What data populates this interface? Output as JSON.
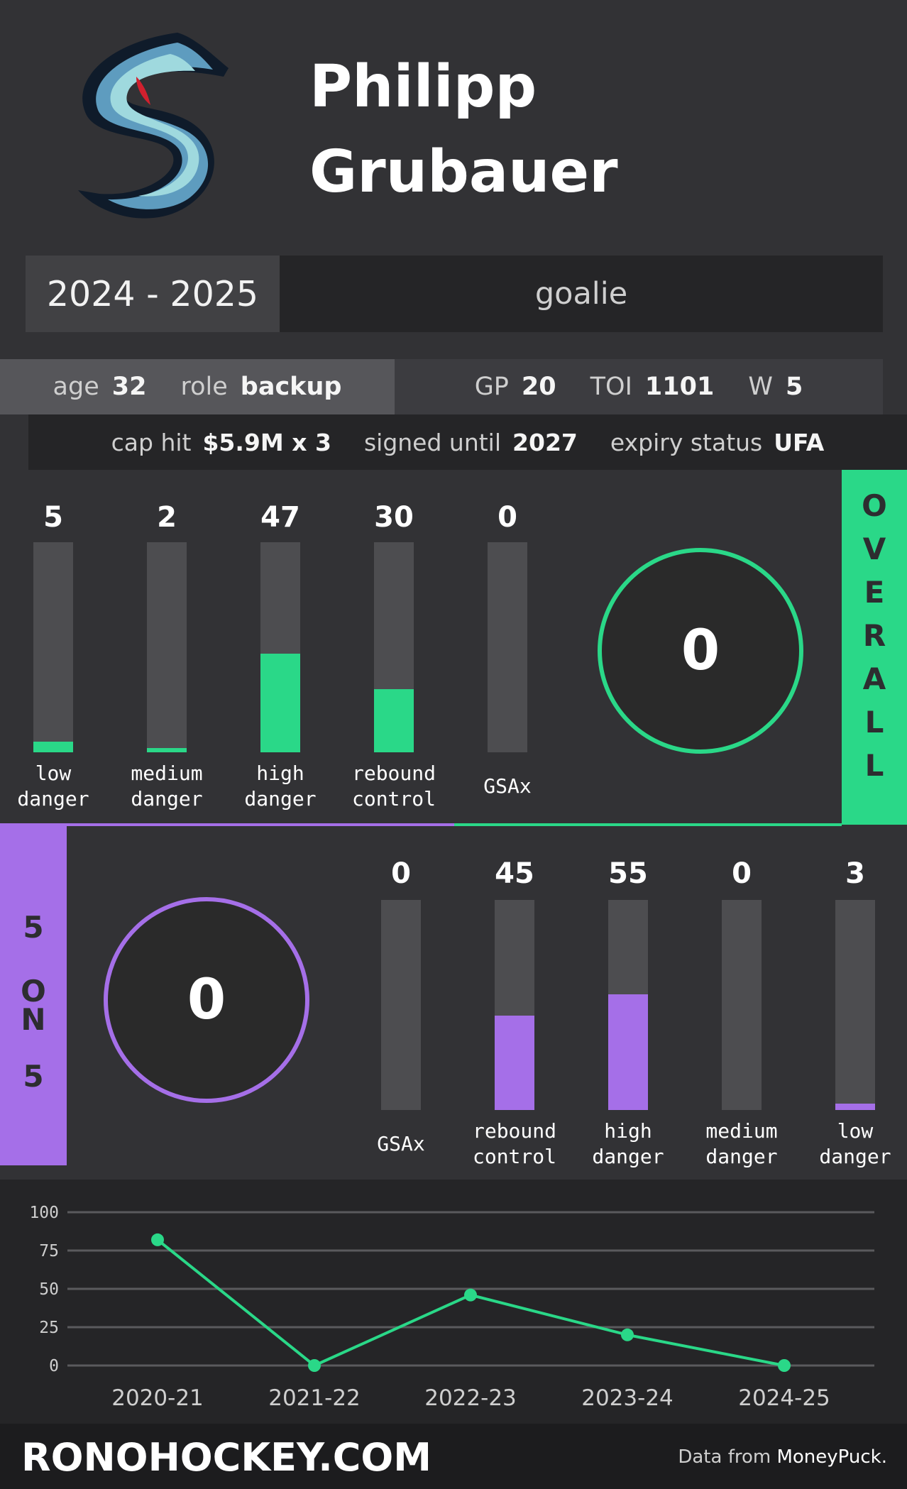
{
  "header": {
    "first_name": "Philipp",
    "last_name": "Grubauer",
    "logo_icon": "kraken-s-logo-icon"
  },
  "season": "2024 - 2025",
  "position": "goalie",
  "info": {
    "age_label": "age",
    "age": "32",
    "role_label": "role",
    "role": "backup",
    "gp_label": "GP",
    "gp": "20",
    "toi_label": "TOI",
    "toi": "1101",
    "w_label": "W",
    "w": "5",
    "cap_label": "cap hit",
    "cap": "$5.9M x 3",
    "signed_label": "signed until",
    "signed": "2027",
    "expiry_label": "expiry status",
    "expiry": "UFA"
  },
  "colors": {
    "overall": "#2ad888",
    "five_on_five": "#a56fe8",
    "track": "#4d4d50"
  },
  "overall": {
    "tab_label": "OVERALL",
    "score": "0",
    "bars": [
      {
        "value": "5",
        "pct": 5,
        "label1": "low",
        "label2": "danger"
      },
      {
        "value": "2",
        "pct": 2,
        "label1": "medium",
        "label2": "danger"
      },
      {
        "value": "47",
        "pct": 47,
        "label1": "high",
        "label2": "danger"
      },
      {
        "value": "30",
        "pct": 30,
        "label1": "rebound",
        "label2": "control"
      },
      {
        "value": "0",
        "pct": 0,
        "label1": "GSAx",
        "label2": ""
      }
    ]
  },
  "five_on_five": {
    "tab_label": "5 ON 5",
    "score": "0",
    "bars": [
      {
        "value": "0",
        "pct": 0,
        "label1": "GSAx",
        "label2": ""
      },
      {
        "value": "45",
        "pct": 45,
        "label1": "rebound",
        "label2": "control"
      },
      {
        "value": "55",
        "pct": 55,
        "label1": "high",
        "label2": "danger"
      },
      {
        "value": "0",
        "pct": 0,
        "label1": "medium",
        "label2": "danger"
      },
      {
        "value": "3",
        "pct": 3,
        "label1": "low",
        "label2": "danger"
      }
    ]
  },
  "chart_data": {
    "type": "line",
    "categories": [
      "2020-21",
      "2021-22",
      "2022-23",
      "2023-24",
      "2024-25"
    ],
    "values": [
      82,
      0,
      46,
      20,
      0
    ],
    "ylim": [
      0,
      100
    ],
    "yticks": [
      "100",
      "75",
      "50",
      "25",
      "0"
    ],
    "grid": true,
    "color": "#2ad888"
  },
  "footer": {
    "site": "RONOHOCKEY.COM",
    "credit_prefix": "Data from ",
    "credit_source": "MoneyPuck."
  }
}
